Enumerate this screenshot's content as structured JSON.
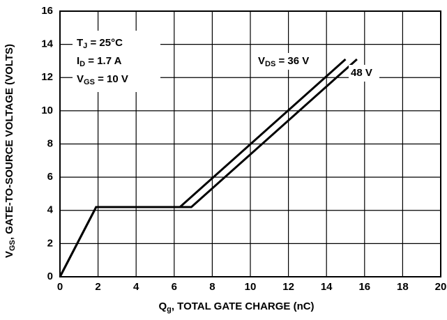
{
  "chart_data": {
    "type": "line",
    "x_label": {
      "main": "Q",
      "sub": "g",
      "rest": ", TOTAL GATE CHARGE (nC)"
    },
    "y_label": {
      "main": "V",
      "sub": "GS",
      "rest": ", GATE-TO-SOURCE VOLTAGE (VOLTS)"
    },
    "conditions": [
      {
        "main": "T",
        "sub": "J",
        "rest": " = 25°C"
      },
      {
        "main": "I",
        "sub": "D",
        "rest": " = 1.7 A"
      },
      {
        "main": "V",
        "sub": "GS",
        "rest": " = 10 V"
      }
    ],
    "series_label_prefix": {
      "main": "V",
      "sub": "DS",
      "rest": " = "
    },
    "series": [
      {
        "name": "36 V",
        "color": "#000000",
        "x": [
          0,
          1.9,
          6.3,
          15.0
        ],
        "values": [
          0,
          4.2,
          4.2,
          13.1
        ]
      },
      {
        "name": "48 V",
        "color": "#000000",
        "x": [
          0,
          1.9,
          6.9,
          15.6
        ],
        "values": [
          0,
          4.2,
          4.2,
          13.1
        ]
      }
    ],
    "xlim": [
      0,
      20
    ],
    "xticks": [
      0,
      2,
      4,
      6,
      8,
      10,
      12,
      14,
      16,
      18,
      20
    ],
    "ylim": [
      0,
      16
    ],
    "yticks": [
      0,
      2,
      4,
      6,
      8,
      10,
      12,
      14,
      16
    ],
    "grid": true
  }
}
